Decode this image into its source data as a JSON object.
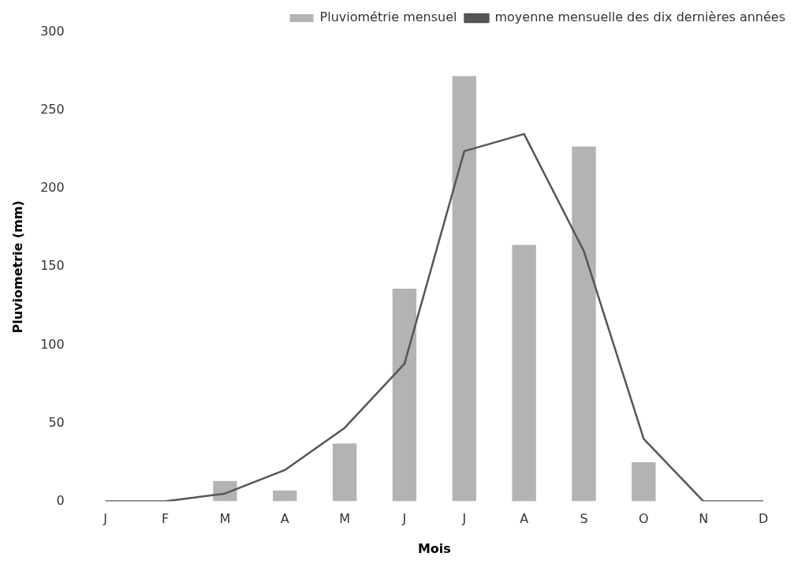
{
  "chart_data": {
    "type": "bar",
    "xlabel": "Mois",
    "ylabel": "Pluviometrie (mm)",
    "categories": [
      "J",
      "F",
      "M",
      "A",
      "M",
      "J",
      "J",
      "A",
      "S",
      "O",
      "N",
      "D"
    ],
    "series": [
      {
        "name": "Pluviométrie mensuel",
        "color": "#b3b3b3",
        "values": [
          0,
          0,
          13,
          7,
          37,
          136,
          272,
          164,
          227,
          25,
          0,
          0
        ]
      },
      {
        "name": "moyenne mensuelle des dix dernières années",
        "type": "line",
        "color": "#555555",
        "values": [
          0,
          0,
          5,
          20,
          47,
          88,
          224,
          235,
          160,
          40,
          0,
          0
        ]
      }
    ],
    "ylim": [
      0,
      300
    ],
    "yticks": [
      0,
      50,
      100,
      150,
      200,
      250,
      300
    ],
    "grid": false,
    "legend": "top right",
    "marker": "none"
  }
}
